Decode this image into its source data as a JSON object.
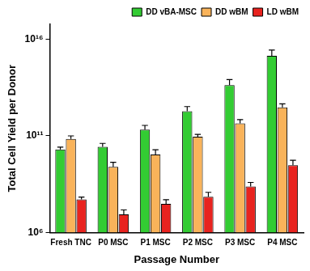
{
  "chart_data": {
    "type": "bar",
    "x_label": "Passage Number",
    "y_label": "Total Cell Yield per Donor",
    "categories": [
      "Fresh TNC",
      "P0 MSC",
      "P1 MSC",
      "P2 MSC",
      "P3 MSC",
      "P4 MSC"
    ],
    "series": [
      {
        "name": "DD vBA-MSC",
        "color": "#33cc33",
        "values": [
          20000000000,
          27000000000,
          210000000000,
          1900000000000,
          42000000000000,
          1400000000000000
        ],
        "errors": [
          6000000000,
          14000000000,
          140000000000,
          1400000000000,
          40000000000000,
          1400000000000000
        ]
      },
      {
        "name": "DD wBM",
        "color": "#f9b35a",
        "values": [
          70000000000,
          2500000000,
          11000000000,
          90000000000,
          450000000000,
          3000000000000
        ],
        "errors": [
          30000000000,
          1800000000,
          8000000000,
          30000000000,
          250000000000,
          1600000000000
        ]
      },
      {
        "name": "LD wBM",
        "color": "#e8231f",
        "values": [
          52000000,
          8700000,
          30000000,
          70000000,
          240000000,
          3000000000
        ],
        "errors": [
          16000000,
          6000000,
          20000000,
          50000000,
          150000000,
          2500000000
        ]
      }
    ],
    "ylim": [
      1000000,
      60000000000000000
    ],
    "yticks": [
      {
        "value": 1000000,
        "label": "10⁶"
      },
      {
        "value": 100000000000,
        "label": "10¹¹"
      },
      {
        "value": 10000000000000000,
        "label": "10¹⁶"
      }
    ],
    "log": "y",
    "grid": false,
    "legend": "upper right"
  }
}
